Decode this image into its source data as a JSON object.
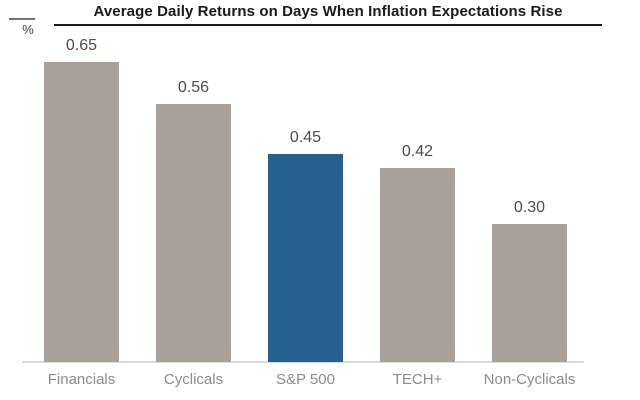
{
  "page": {
    "background": "#FFFFFF"
  },
  "chart_data": {
    "type": "bar",
    "title": "Average Daily Returns on Days When Inflation Expectations Rise",
    "ylabel": "%",
    "xlabel": "",
    "categories": [
      "Financials",
      "Cyclicals",
      "S&P 500",
      "TECH+",
      "Non-Cyclicals"
    ],
    "values": [
      0.65,
      0.56,
      0.45,
      0.42,
      0.3
    ],
    "value_labels": [
      "0.65",
      "0.56",
      "0.45",
      "0.42",
      "0.30"
    ],
    "highlight_index": 2,
    "highlighted_category": "S&P 500",
    "ylim": [
      0,
      0.7
    ],
    "grid": false,
    "legend": false,
    "colors": {
      "bar_default": "#A8A19A",
      "bar_highlight": "#25618F",
      "title_text": "#1A1A1A",
      "value_label_text": "#4D4D4D",
      "category_label_text": "#8C8C8C",
      "baseline": "#D9D9D9",
      "axis_dash": "#737373"
    }
  }
}
